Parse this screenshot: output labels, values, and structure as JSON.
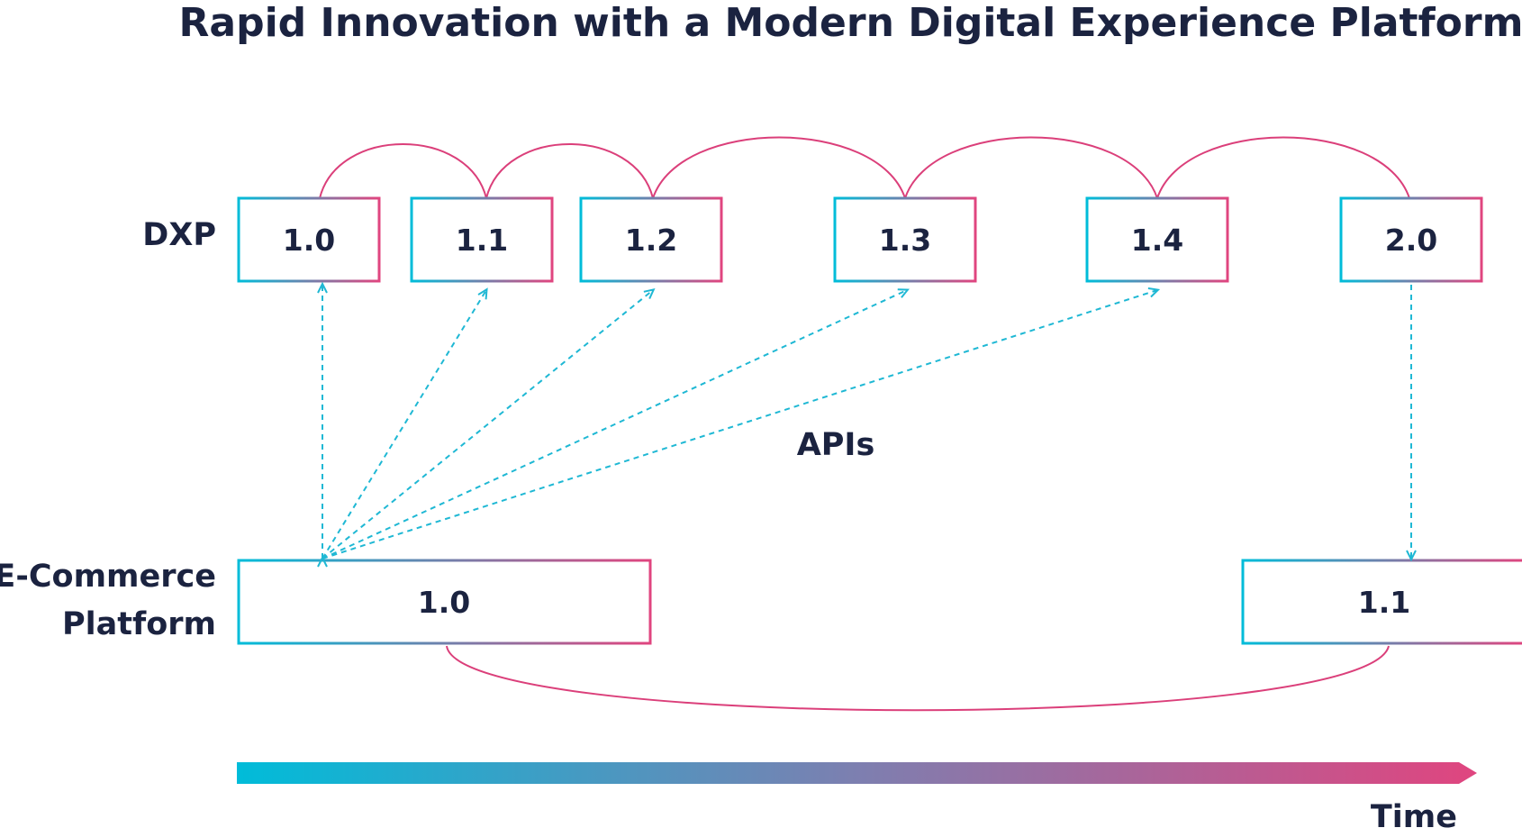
{
  "title": "Rapid Innovation with a Modern Digital Experience Platform",
  "rows": {
    "dxp_label": "DXP",
    "ecommerce_label_line1": "E-Commerce",
    "ecommerce_label_line2": "Platform"
  },
  "dxp_versions": [
    "1.0",
    "1.1",
    "1.2",
    "1.3",
    "1.4",
    "2.0"
  ],
  "ecommerce_versions": [
    "1.0",
    "1.1"
  ],
  "apis_label": "APIs",
  "time_label": "Time",
  "colors": {
    "cyan": "#00bcd9",
    "pink": "#e0457f",
    "link_curve": "#db3f7a",
    "api_arrow": "#1fb8d4",
    "text": "#1b2340"
  }
}
